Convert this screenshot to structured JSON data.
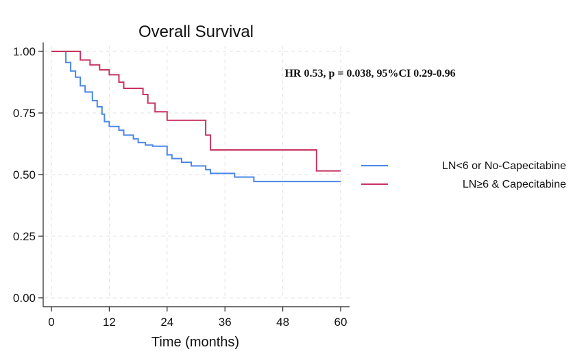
{
  "chart_data": {
    "type": "line",
    "title": "Overall Survival",
    "xlabel": "Time (months)",
    "ylabel": "",
    "xlim": [
      0,
      60
    ],
    "ylim": [
      0,
      1
    ],
    "x_ticks": [
      0,
      12,
      24,
      36,
      48,
      60
    ],
    "x_tick_labels": [
      "0",
      "12",
      "24",
      "36",
      "48",
      "60"
    ],
    "y_ticks": [
      0,
      0.25,
      0.5,
      0.75,
      1
    ],
    "y_tick_labels": [
      "0.00",
      "0.25",
      "0.50",
      "0.75",
      "1.00"
    ],
    "grid": true,
    "legend_position": "right",
    "annotation": "HR 0.53, p = 0.038, 95%CI 0.29-0.96",
    "series": [
      {
        "name": "LN<6 or No-Capecitabine",
        "color": "#4a86e8",
        "step": true,
        "points": [
          [
            0,
            1.0
          ],
          [
            3,
            1.0
          ],
          [
            3,
            0.955
          ],
          [
            4,
            0.955
          ],
          [
            4,
            0.92
          ],
          [
            5,
            0.92
          ],
          [
            5,
            0.895
          ],
          [
            6,
            0.895
          ],
          [
            6,
            0.86
          ],
          [
            7,
            0.86
          ],
          [
            7,
            0.835
          ],
          [
            8.5,
            0.835
          ],
          [
            8.5,
            0.8
          ],
          [
            9.5,
            0.8
          ],
          [
            9.5,
            0.775
          ],
          [
            10.5,
            0.775
          ],
          [
            10.5,
            0.745
          ],
          [
            11,
            0.745
          ],
          [
            11,
            0.715
          ],
          [
            12,
            0.715
          ],
          [
            12,
            0.695
          ],
          [
            14,
            0.695
          ],
          [
            14,
            0.68
          ],
          [
            15,
            0.68
          ],
          [
            15,
            0.66
          ],
          [
            17,
            0.66
          ],
          [
            17,
            0.645
          ],
          [
            18,
            0.645
          ],
          [
            18,
            0.63
          ],
          [
            19.5,
            0.63
          ],
          [
            19.5,
            0.62
          ],
          [
            21,
            0.62
          ],
          [
            21,
            0.615
          ],
          [
            24,
            0.615
          ],
          [
            24,
            0.58
          ],
          [
            25,
            0.58
          ],
          [
            25,
            0.565
          ],
          [
            27,
            0.565
          ],
          [
            27,
            0.55
          ],
          [
            29,
            0.55
          ],
          [
            29,
            0.535
          ],
          [
            32,
            0.535
          ],
          [
            32,
            0.52
          ],
          [
            33,
            0.52
          ],
          [
            33,
            0.505
          ],
          [
            38,
            0.505
          ],
          [
            38,
            0.49
          ],
          [
            42,
            0.49
          ],
          [
            42,
            0.472
          ],
          [
            60,
            0.472
          ]
        ]
      },
      {
        "name": "LN≥6 & Capecitabine",
        "color": "#c8325f",
        "step": true,
        "points": [
          [
            0,
            1.0
          ],
          [
            6,
            1.0
          ],
          [
            6,
            0.965
          ],
          [
            8,
            0.965
          ],
          [
            8,
            0.945
          ],
          [
            10,
            0.945
          ],
          [
            10,
            0.925
          ],
          [
            12,
            0.925
          ],
          [
            12,
            0.905
          ],
          [
            14,
            0.905
          ],
          [
            14,
            0.875
          ],
          [
            15,
            0.875
          ],
          [
            15,
            0.85
          ],
          [
            19,
            0.85
          ],
          [
            19,
            0.825
          ],
          [
            20,
            0.825
          ],
          [
            20,
            0.79
          ],
          [
            21.5,
            0.79
          ],
          [
            21.5,
            0.755
          ],
          [
            24,
            0.755
          ],
          [
            24,
            0.72
          ],
          [
            32,
            0.72
          ],
          [
            32,
            0.66
          ],
          [
            33,
            0.66
          ],
          [
            33,
            0.6
          ],
          [
            55,
            0.6
          ],
          [
            55,
            0.515
          ],
          [
            60,
            0.515
          ]
        ]
      }
    ]
  }
}
